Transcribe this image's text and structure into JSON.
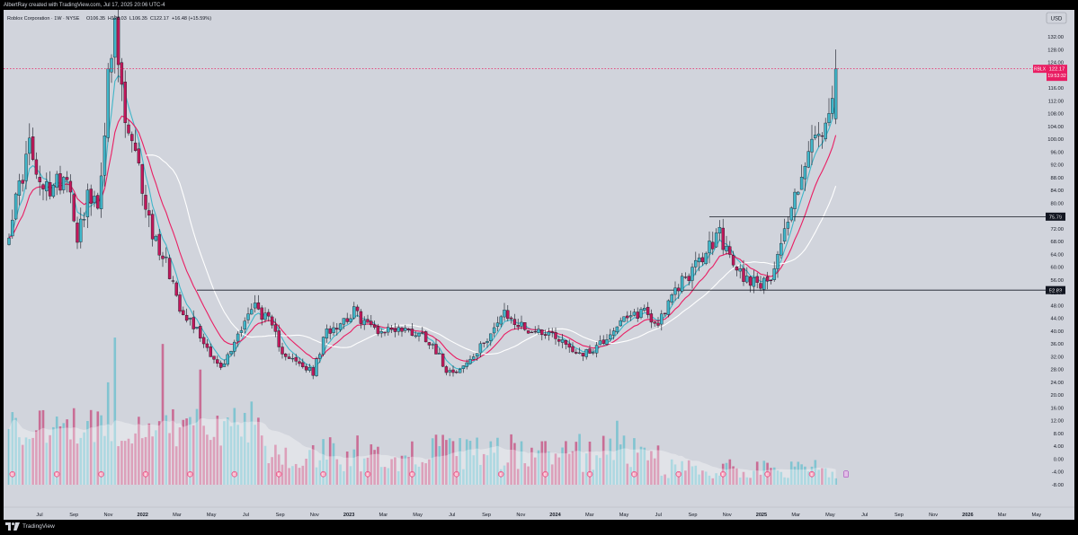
{
  "header": {
    "attribution": "AlbertRay created with TradingView.com, Jul 17, 2025 20:06 UTC-4"
  },
  "legend": {
    "symbol_line": "Roblox Corporation · 1W · NYSE",
    "ohlc": {
      "open": "O106.35",
      "high": "H128.03",
      "low": "L106.35",
      "close": "C122.17",
      "change": "+16.48 (+15.59%)"
    }
  },
  "currency_label": "USD",
  "price_tag": {
    "symbol": "RBLX",
    "price": "122.17",
    "countdown": "19:53:32"
  },
  "levels": [
    {
      "label": "75.79",
      "value": 75.79
    },
    {
      "label": "52.83",
      "value": 52.83
    }
  ],
  "footer": {
    "brand": "TradingView"
  },
  "colors": {
    "background": "#d1d4dc",
    "up": "#40b6c9",
    "down": "#c2185b",
    "ma_fast": "#40b6c9",
    "ma_mid": "#e91e63",
    "ma_slow": "#ffffff",
    "price_tag": "#e91e63"
  },
  "chart_data": {
    "type": "candlestick",
    "interval": "1W",
    "y_axis": {
      "range": [
        -10,
        139
      ],
      "ticks": [
        "132.00",
        "128.00",
        "124.00",
        "120.00",
        "116.00",
        "112.00",
        "108.00",
        "104.00",
        "100.00",
        "96.00",
        "92.00",
        "88.00",
        "84.00",
        "80.00",
        "76.00",
        "72.00",
        "68.00",
        "64.00",
        "60.00",
        "56.00",
        "52.00",
        "48.00",
        "44.00",
        "40.00",
        "36.00",
        "32.00",
        "28.00",
        "24.00",
        "20.00",
        "16.00",
        "12.00",
        "8.00",
        "4.00",
        "0.00",
        "-4.00",
        "-8.00"
      ]
    },
    "x_axis": {
      "labels": [
        "Jul",
        "Sep",
        "Nov",
        "2022",
        "Mar",
        "May",
        "Jul",
        "Sep",
        "Nov",
        "2023",
        "Mar",
        "May",
        "Jul",
        "Sep",
        "Nov",
        "2024",
        "Mar",
        "May",
        "Jul",
        "Sep",
        "Nov",
        "2025",
        "Mar",
        "May",
        "Jul",
        "Sep",
        "Nov",
        "2026",
        "Mar",
        "May"
      ]
    },
    "price_anchors": [
      [
        0,
        72
      ],
      [
        3,
        85
      ],
      [
        6,
        98
      ],
      [
        9,
        84
      ],
      [
        13,
        85
      ],
      [
        17,
        90
      ],
      [
        20,
        70
      ],
      [
        23,
        82
      ],
      [
        26,
        78
      ],
      [
        29,
        118
      ],
      [
        31,
        133
      ],
      [
        34,
        105
      ],
      [
        38,
        90
      ],
      [
        42,
        70
      ],
      [
        46,
        62
      ],
      [
        50,
        48
      ],
      [
        54,
        42
      ],
      [
        58,
        35
      ],
      [
        62,
        28
      ],
      [
        65,
        34
      ],
      [
        69,
        44
      ],
      [
        72,
        48
      ],
      [
        76,
        43
      ],
      [
        80,
        34
      ],
      [
        84,
        30
      ],
      [
        89,
        27
      ],
      [
        93,
        40
      ],
      [
        97,
        43
      ],
      [
        101,
        46
      ],
      [
        105,
        42
      ],
      [
        109,
        40
      ],
      [
        113,
        41
      ],
      [
        117,
        40
      ],
      [
        121,
        39
      ],
      [
        124,
        36
      ],
      [
        128,
        28
      ],
      [
        132,
        28
      ],
      [
        137,
        33
      ],
      [
        141,
        40
      ],
      [
        145,
        45
      ],
      [
        149,
        42
      ],
      [
        153,
        40
      ],
      [
        157,
        40
      ],
      [
        161,
        38
      ],
      [
        165,
        34
      ],
      [
        169,
        33
      ],
      [
        174,
        37
      ],
      [
        178,
        42
      ],
      [
        182,
        44
      ],
      [
        186,
        47
      ],
      [
        189,
        42
      ],
      [
        193,
        48
      ],
      [
        197,
        56
      ],
      [
        201,
        60
      ],
      [
        205,
        66
      ],
      [
        208,
        71
      ],
      [
        211,
        62
      ],
      [
        215,
        57
      ],
      [
        219,
        56
      ],
      [
        222,
        54
      ],
      [
        225,
        65
      ],
      [
        229,
        78
      ],
      [
        232,
        90
      ],
      [
        236,
        100
      ],
      [
        240,
        104
      ],
      [
        242,
        122
      ]
    ],
    "price_high_last": 128.03,
    "price_low_min": 22.5,
    "volume_peaks": [
      [
        29,
        16
      ],
      [
        31,
        23
      ],
      [
        45,
        22
      ],
      [
        56,
        18
      ],
      [
        59,
        7
      ],
      [
        71,
        13
      ],
      [
        112,
        4
      ],
      [
        128,
        7
      ],
      [
        145,
        3
      ],
      [
        168,
        2
      ],
      [
        178,
        10
      ],
      [
        206,
        1
      ],
      [
        215,
        2
      ],
      [
        226,
        2
      ],
      [
        242,
        1
      ]
    ],
    "annotations": [
      "E"
    ]
  }
}
